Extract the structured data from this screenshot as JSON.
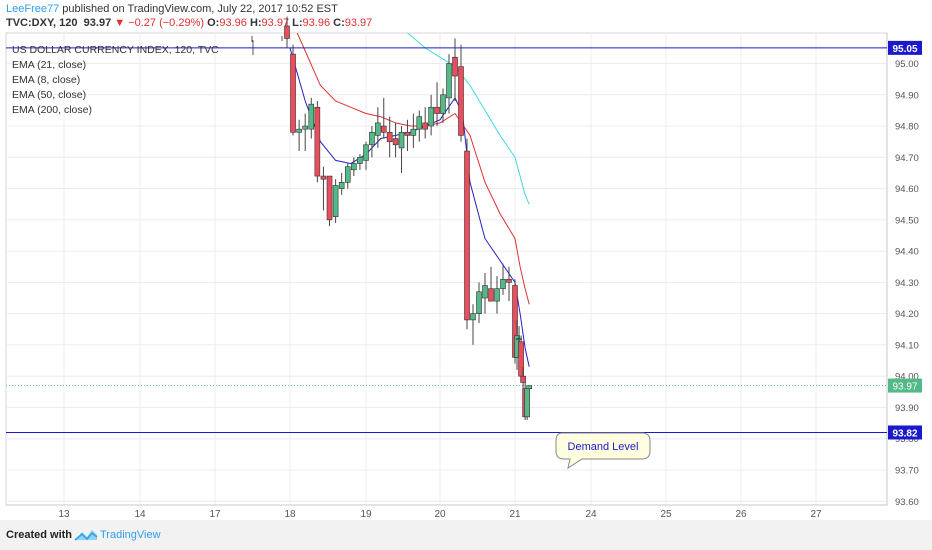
{
  "header": {
    "author": "LeeFree77",
    "published": " published on TradingView.com, July 22, 2017 10:52 EST",
    "ticker": "TVC:DXY, 120",
    "last": "93.97",
    "change": "−0.27 (−0.29%)",
    "o_label": "O:",
    "o": "93.96",
    "h_label": "H:",
    "h": "93.97",
    "l_label": "L:",
    "l": "93.96",
    "c_label": "C:",
    "c": "93.97"
  },
  "legend": {
    "title": "US DOLLAR CURRENCY INDEX, 120, TVC",
    "items": [
      "EMA (21, close)",
      "EMA (8, close)",
      "EMA (50, close)",
      "EMA (200, close)"
    ]
  },
  "footer": {
    "created": "Created with",
    "brand": "TradingView"
  },
  "colors": {
    "up": "#53b987",
    "down": "#eb4d5c",
    "ema8": "#2020c0",
    "ema21": "#e03030",
    "ema200": "#40d8e0",
    "level": "#1a1acc"
  },
  "chart_data": {
    "type": "candlestick",
    "title": "US DOLLAR CURRENCY INDEX, 120, TVC",
    "x_ticks": [
      {
        "label": "13",
        "x": 13
      },
      {
        "label": "14",
        "x": 14
      },
      {
        "label": "17",
        "x": 17
      },
      {
        "label": "18",
        "x": 18
      },
      {
        "label": "19",
        "x": 19
      },
      {
        "label": "20",
        "x": 20
      },
      {
        "label": "21",
        "x": 21
      },
      {
        "label": "24",
        "x": 24
      },
      {
        "label": "25",
        "x": 25
      },
      {
        "label": "26",
        "x": 26
      },
      {
        "label": "27",
        "x": 27
      }
    ],
    "y_ticks": [
      "95.00",
      "94.90",
      "94.80",
      "94.70",
      "94.60",
      "94.50",
      "94.40",
      "94.30",
      "94.20",
      "94.10",
      "94.00",
      "93.90",
      "93.80",
      "93.70",
      "93.60"
    ],
    "ylim": [
      93.6,
      95.13
    ],
    "grid": true,
    "candles": [
      {
        "x": 17.96,
        "o": 95.12,
        "h": 95.15,
        "l": 95.05,
        "c": 95.08
      },
      {
        "x": 18.04,
        "o": 95.03,
        "h": 95.06,
        "l": 94.77,
        "c": 94.78
      },
      {
        "x": 18.12,
        "o": 94.78,
        "h": 94.82,
        "l": 94.72,
        "c": 94.79
      },
      {
        "x": 18.2,
        "o": 94.79,
        "h": 94.84,
        "l": 94.72,
        "c": 94.8
      },
      {
        "x": 18.28,
        "o": 94.79,
        "h": 94.89,
        "l": 94.76,
        "c": 94.87
      },
      {
        "x": 18.36,
        "o": 94.86,
        "h": 94.88,
        "l": 94.62,
        "c": 94.64
      },
      {
        "x": 18.44,
        "o": 94.64,
        "h": 94.67,
        "l": 94.53,
        "c": 94.63
      },
      {
        "x": 18.52,
        "o": 94.64,
        "h": 94.64,
        "l": 94.48,
        "c": 94.5
      },
      {
        "x": 18.6,
        "o": 94.51,
        "h": 94.63,
        "l": 94.49,
        "c": 94.61
      },
      {
        "x": 18.68,
        "o": 94.6,
        "h": 94.65,
        "l": 94.58,
        "c": 94.62
      },
      {
        "x": 18.76,
        "o": 94.62,
        "h": 94.68,
        "l": 94.6,
        "c": 94.67
      },
      {
        "x": 18.84,
        "o": 94.66,
        "h": 94.7,
        "l": 94.64,
        "c": 94.68
      },
      {
        "x": 18.92,
        "o": 94.68,
        "h": 94.71,
        "l": 94.66,
        "c": 94.7
      },
      {
        "x": 19.0,
        "o": 94.69,
        "h": 94.75,
        "l": 94.66,
        "c": 94.74
      },
      {
        "x": 19.08,
        "o": 94.74,
        "h": 94.8,
        "l": 94.7,
        "c": 94.78
      },
      {
        "x": 19.16,
        "o": 94.77,
        "h": 94.86,
        "l": 94.73,
        "c": 94.81
      },
      {
        "x": 19.24,
        "o": 94.8,
        "h": 94.89,
        "l": 94.76,
        "c": 94.78
      },
      {
        "x": 19.32,
        "o": 94.78,
        "h": 94.83,
        "l": 94.7,
        "c": 94.75
      },
      {
        "x": 19.4,
        "o": 94.76,
        "h": 94.81,
        "l": 94.7,
        "c": 94.74
      },
      {
        "x": 19.48,
        "o": 94.73,
        "h": 94.8,
        "l": 94.65,
        "c": 94.78
      },
      {
        "x": 19.56,
        "o": 94.78,
        "h": 94.82,
        "l": 94.72,
        "c": 94.77
      },
      {
        "x": 19.64,
        "o": 94.77,
        "h": 94.84,
        "l": 94.73,
        "c": 94.79
      },
      {
        "x": 19.72,
        "o": 94.79,
        "h": 94.85,
        "l": 94.75,
        "c": 94.83
      },
      {
        "x": 19.8,
        "o": 94.81,
        "h": 94.86,
        "l": 94.76,
        "c": 94.79
      },
      {
        "x": 19.88,
        "o": 94.8,
        "h": 94.9,
        "l": 94.77,
        "c": 94.86
      },
      {
        "x": 19.96,
        "o": 94.86,
        "h": 94.94,
        "l": 94.8,
        "c": 94.84
      },
      {
        "x": 20.04,
        "o": 94.84,
        "h": 94.92,
        "l": 94.81,
        "c": 94.9
      },
      {
        "x": 20.12,
        "o": 94.89,
        "h": 95.03,
        "l": 94.84,
        "c": 95.0
      },
      {
        "x": 20.2,
        "o": 95.02,
        "h": 95.08,
        "l": 94.88,
        "c": 94.96
      },
      {
        "x": 20.28,
        "o": 94.99,
        "h": 95.06,
        "l": 94.75,
        "c": 94.77
      },
      {
        "x": 20.36,
        "o": 94.72,
        "h": 94.76,
        "l": 94.15,
        "c": 94.18
      },
      {
        "x": 20.44,
        "o": 94.18,
        "h": 94.23,
        "l": 94.1,
        "c": 94.2
      },
      {
        "x": 20.52,
        "o": 94.2,
        "h": 94.3,
        "l": 94.17,
        "c": 94.27
      },
      {
        "x": 20.6,
        "o": 94.25,
        "h": 94.33,
        "l": 94.2,
        "c": 94.29
      },
      {
        "x": 20.68,
        "o": 94.28,
        "h": 94.35,
        "l": 94.25,
        "c": 94.24
      },
      {
        "x": 20.76,
        "o": 94.24,
        "h": 94.32,
        "l": 94.2,
        "c": 94.28
      },
      {
        "x": 20.84,
        "o": 94.28,
        "h": 94.36,
        "l": 94.26,
        "c": 94.31
      },
      {
        "x": 20.92,
        "o": 94.31,
        "h": 94.35,
        "l": 94.24,
        "c": 94.3
      },
      {
        "x": 21.0,
        "o": 94.29,
        "h": 94.31,
        "l": 94.04,
        "c": 94.06
      },
      {
        "x": 21.08,
        "o": 94.06,
        "h": 94.18,
        "l": 94.02,
        "c": 94.13
      },
      {
        "x": 21.16,
        "o": 94.12,
        "h": 94.16,
        "l": 94.06,
        "c": 94.12
      },
      {
        "x": 21.24,
        "o": 94.11,
        "h": 94.13,
        "l": 93.99,
        "c": 94.0
      },
      {
        "x": 21.32,
        "o": 94.0,
        "h": 94.03,
        "l": 93.95,
        "c": 93.98
      },
      {
        "x": 21.4,
        "o": 93.96,
        "h": 93.98,
        "l": 93.86,
        "c": 93.87
      },
      {
        "x": 21.48,
        "o": 93.87,
        "h": 93.97,
        "l": 93.86,
        "c": 93.96
      },
      {
        "x": 21.56,
        "o": 93.96,
        "h": 93.97,
        "l": 93.96,
        "c": 93.97
      }
    ],
    "series": [
      {
        "name": "EMA (8, close)",
        "color": "#2020c0",
        "points": [
          [
            18.0,
            95.05
          ],
          [
            18.2,
            94.88
          ],
          [
            18.4,
            94.75
          ],
          [
            18.6,
            94.69
          ],
          [
            18.8,
            94.68
          ],
          [
            19.0,
            94.71
          ],
          [
            19.2,
            94.76
          ],
          [
            19.4,
            94.77
          ],
          [
            19.6,
            94.78
          ],
          [
            19.8,
            94.8
          ],
          [
            20.0,
            94.82
          ],
          [
            20.2,
            94.89
          ],
          [
            20.3,
            94.84
          ],
          [
            20.4,
            94.62
          ],
          [
            20.6,
            94.44
          ],
          [
            20.8,
            94.37
          ],
          [
            21.0,
            94.3
          ],
          [
            21.2,
            94.2
          ],
          [
            21.4,
            94.09
          ],
          [
            21.56,
            94.03
          ]
        ]
      },
      {
        "name": "EMA (21, close)",
        "color": "#e03030",
        "points": [
          [
            18.0,
            95.15
          ],
          [
            18.2,
            95.04
          ],
          [
            18.4,
            94.93
          ],
          [
            18.6,
            94.88
          ],
          [
            18.8,
            94.86
          ],
          [
            19.0,
            94.84
          ],
          [
            19.2,
            94.83
          ],
          [
            19.4,
            94.81
          ],
          [
            19.6,
            94.8
          ],
          [
            19.8,
            94.8
          ],
          [
            20.0,
            94.81
          ],
          [
            20.2,
            94.84
          ],
          [
            20.4,
            94.77
          ],
          [
            20.6,
            94.62
          ],
          [
            20.8,
            94.52
          ],
          [
            21.0,
            94.44
          ],
          [
            21.2,
            94.35
          ],
          [
            21.4,
            94.28
          ],
          [
            21.56,
            94.23
          ]
        ]
      },
      {
        "name": "EMA (200, close)",
        "color": "#40d8e0",
        "points": [
          [
            19.4,
            95.13
          ],
          [
            19.6,
            95.09
          ],
          [
            19.8,
            95.05
          ],
          [
            20.0,
            95.02
          ],
          [
            20.2,
            94.99
          ],
          [
            20.4,
            94.93
          ],
          [
            20.6,
            94.85
          ],
          [
            20.8,
            94.77
          ],
          [
            21.0,
            94.7
          ],
          [
            21.2,
            94.64
          ],
          [
            21.4,
            94.58
          ],
          [
            21.56,
            94.55
          ]
        ]
      }
    ],
    "horizontal_levels": [
      {
        "value": 95.05,
        "label": "95.05",
        "color": "#1a1acc"
      },
      {
        "value": 93.82,
        "label": "93.82",
        "color": "#1a1acc"
      }
    ],
    "last_price": {
      "value": 93.97,
      "label": "93.97",
      "color": "#53b987"
    },
    "annotations": [
      {
        "text": "Demand Level",
        "x": 21.53,
        "y": 93.76
      }
    ]
  }
}
